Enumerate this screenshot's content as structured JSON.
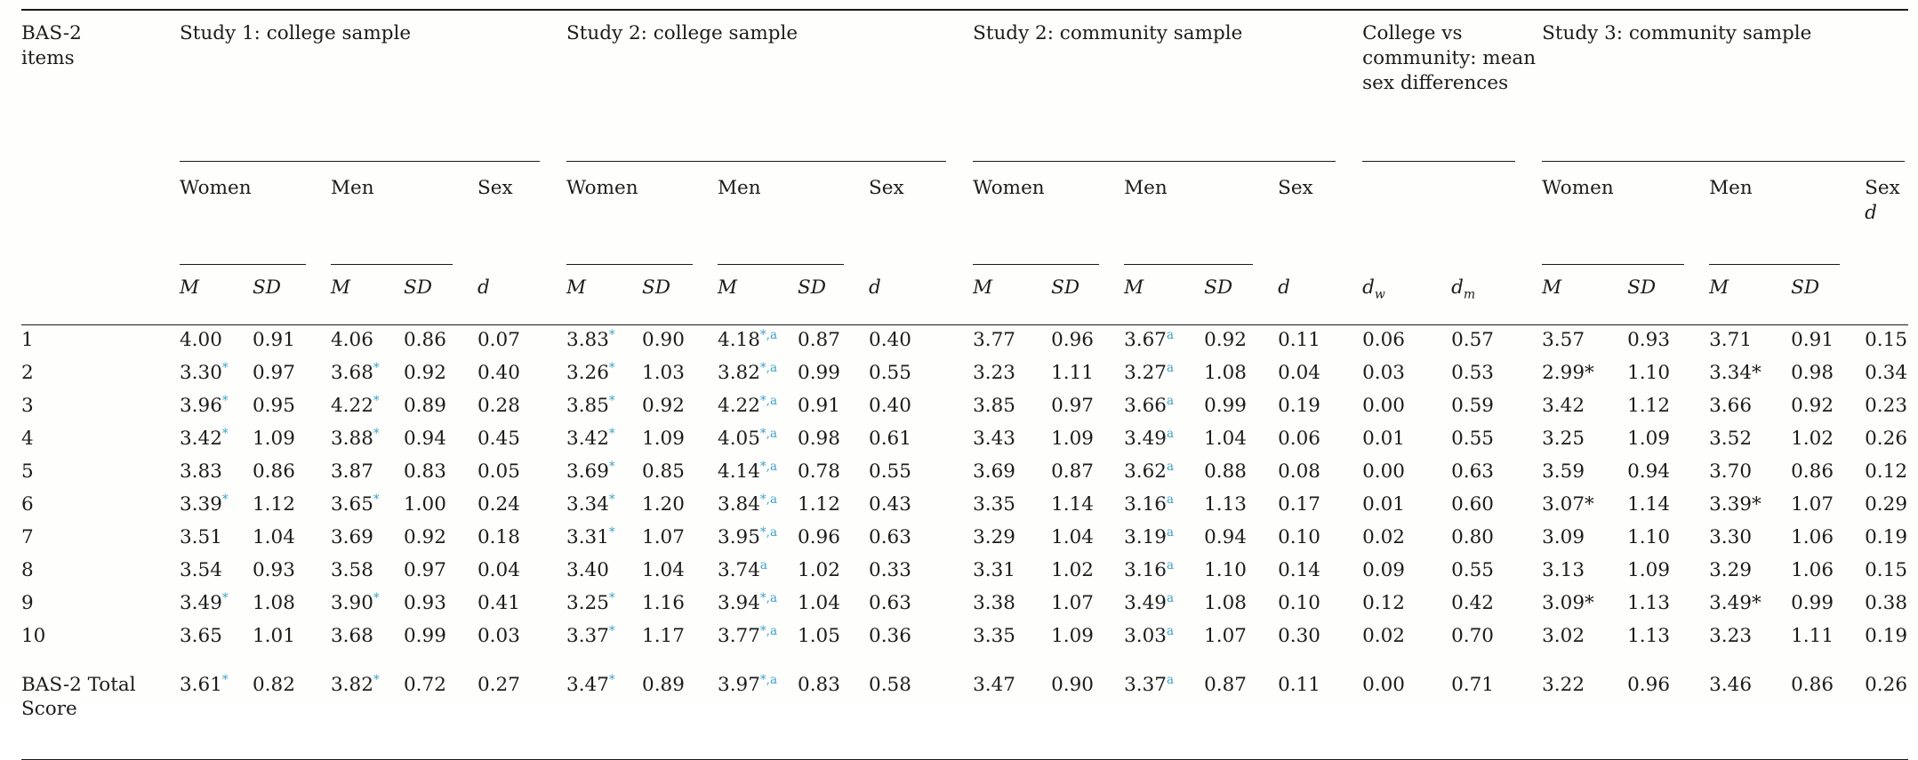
{
  "accent_color": "#3aa1c5",
  "line_color": "#1a1a1a",
  "header": {
    "items_label": "BAS-2\nitems",
    "groups": [
      {
        "label": "Study 1: college sample"
      },
      {
        "label": "Study 2: college sample"
      },
      {
        "label": "Study 2: community sample"
      },
      {
        "label": "College vs community: mean sex differences"
      },
      {
        "label": "Study 3: community sample"
      }
    ],
    "labels": {
      "women": "Women",
      "men": "Men",
      "sex": "Sex",
      "m": "M",
      "sd": "SD",
      "d": "d",
      "dw_sub": "w",
      "dm_sub": "m"
    }
  },
  "rows": [
    {
      "item": "1",
      "cells": [
        "4.00",
        "0.91",
        "4.06",
        "0.86",
        "0.07",
        {
          "v": "3.83",
          "s": "*"
        },
        "0.90",
        {
          "v": "4.18",
          "s": "*,a"
        },
        "0.87",
        "0.40",
        "3.77",
        "0.96",
        {
          "v": "3.67",
          "s": "a"
        },
        "0.92",
        "0.11",
        "0.06",
        "0.57",
        "3.57",
        "0.93",
        "3.71",
        "0.91",
        "0.15"
      ]
    },
    {
      "item": "2",
      "cells": [
        {
          "v": "3.30",
          "s": "*"
        },
        "0.97",
        {
          "v": "3.68",
          "s": "*"
        },
        "0.92",
        "0.40",
        {
          "v": "3.26",
          "s": "*"
        },
        "1.03",
        {
          "v": "3.82",
          "s": "*,a"
        },
        "0.99",
        "0.55",
        "3.23",
        "1.11",
        {
          "v": "3.27",
          "s": "a"
        },
        "1.08",
        "0.04",
        "0.03",
        "0.53",
        "2.99*",
        "1.10",
        "3.34*",
        "0.98",
        "0.34"
      ]
    },
    {
      "item": "3",
      "cells": [
        {
          "v": "3.96",
          "s": "*"
        },
        "0.95",
        {
          "v": "4.22",
          "s": "*"
        },
        "0.89",
        "0.28",
        {
          "v": "3.85",
          "s": "*"
        },
        "0.92",
        {
          "v": "4.22",
          "s": "*,a"
        },
        "0.91",
        "0.40",
        "3.85",
        "0.97",
        {
          "v": "3.66",
          "s": "a"
        },
        "0.99",
        "0.19",
        "0.00",
        "0.59",
        "3.42",
        "1.12",
        "3.66",
        "0.92",
        "0.23"
      ]
    },
    {
      "item": "4",
      "cells": [
        {
          "v": "3.42",
          "s": "*"
        },
        "1.09",
        {
          "v": "3.88",
          "s": "*"
        },
        "0.94",
        "0.45",
        {
          "v": "3.42",
          "s": "*"
        },
        "1.09",
        {
          "v": "4.05",
          "s": "*,a"
        },
        "0.98",
        "0.61",
        "3.43",
        "1.09",
        {
          "v": "3.49",
          "s": "a"
        },
        "1.04",
        "0.06",
        "0.01",
        "0.55",
        "3.25",
        "1.09",
        "3.52",
        "1.02",
        "0.26"
      ]
    },
    {
      "item": "5",
      "cells": [
        "3.83",
        "0.86",
        "3.87",
        "0.83",
        "0.05",
        {
          "v": "3.69",
          "s": "*"
        },
        "0.85",
        {
          "v": "4.14",
          "s": "*,a"
        },
        "0.78",
        "0.55",
        "3.69",
        "0.87",
        {
          "v": "3.62",
          "s": "a"
        },
        "0.88",
        "0.08",
        "0.00",
        "0.63",
        "3.59",
        "0.94",
        "3.70",
        "0.86",
        "0.12"
      ]
    },
    {
      "item": "6",
      "cells": [
        {
          "v": "3.39",
          "s": "*"
        },
        "1.12",
        {
          "v": "3.65",
          "s": "*"
        },
        "1.00",
        "0.24",
        {
          "v": "3.34",
          "s": "*"
        },
        "1.20",
        {
          "v": "3.84",
          "s": "*,a"
        },
        "1.12",
        "0.43",
        "3.35",
        "1.14",
        {
          "v": "3.16",
          "s": "a"
        },
        "1.13",
        "0.17",
        "0.01",
        "0.60",
        "3.07*",
        "1.14",
        "3.39*",
        "1.07",
        "0.29"
      ]
    },
    {
      "item": "7",
      "cells": [
        "3.51",
        "1.04",
        "3.69",
        "0.92",
        "0.18",
        {
          "v": "3.31",
          "s": "*"
        },
        "1.07",
        {
          "v": "3.95",
          "s": "*,a"
        },
        "0.96",
        "0.63",
        "3.29",
        "1.04",
        {
          "v": "3.19",
          "s": "a"
        },
        "0.94",
        "0.10",
        "0.02",
        "0.80",
        "3.09",
        "1.10",
        "3.30",
        "1.06",
        "0.19"
      ]
    },
    {
      "item": "8",
      "cells": [
        "3.54",
        "0.93",
        "3.58",
        "0.97",
        "0.04",
        "3.40",
        "1.04",
        {
          "v": "3.74",
          "s": "a"
        },
        "1.02",
        "0.33",
        "3.31",
        "1.02",
        {
          "v": "3.16",
          "s": "a"
        },
        "1.10",
        "0.14",
        "0.09",
        "0.55",
        "3.13",
        "1.09",
        "3.29",
        "1.06",
        "0.15"
      ]
    },
    {
      "item": "9",
      "cells": [
        {
          "v": "3.49",
          "s": "*"
        },
        "1.08",
        {
          "v": "3.90",
          "s": "*"
        },
        "0.93",
        "0.41",
        {
          "v": "3.25",
          "s": "*"
        },
        "1.16",
        {
          "v": "3.94",
          "s": "*,a"
        },
        "1.04",
        "0.63",
        "3.38",
        "1.07",
        {
          "v": "3.49",
          "s": "a"
        },
        "1.08",
        "0.10",
        "0.12",
        "0.42",
        "3.09*",
        "1.13",
        "3.49*",
        "0.99",
        "0.38"
      ]
    },
    {
      "item": "10",
      "cells": [
        "3.65",
        "1.01",
        "3.68",
        "0.99",
        "0.03",
        {
          "v": "3.37",
          "s": "*"
        },
        "1.17",
        {
          "v": "3.77",
          "s": "*,a"
        },
        "1.05",
        "0.36",
        "3.35",
        "1.09",
        {
          "v": "3.03",
          "s": "a"
        },
        "1.07",
        "0.30",
        "0.02",
        "0.70",
        "3.02",
        "1.13",
        "3.23",
        "1.11",
        "0.19"
      ]
    },
    {
      "item": "BAS-2 Total Score",
      "total": true,
      "cells": [
        {
          "v": "3.61",
          "s": "*"
        },
        "0.82",
        {
          "v": "3.82",
          "s": "*"
        },
        "0.72",
        "0.27",
        {
          "v": "3.47",
          "s": "*"
        },
        "0.89",
        {
          "v": "3.97",
          "s": "*,a"
        },
        "0.83",
        "0.58",
        "3.47",
        "0.90",
        {
          "v": "3.37",
          "s": "a"
        },
        "0.87",
        "0.11",
        "0.00",
        "0.71",
        "3.22",
        "0.96",
        "3.46",
        "0.86",
        "0.26"
      ]
    }
  ]
}
